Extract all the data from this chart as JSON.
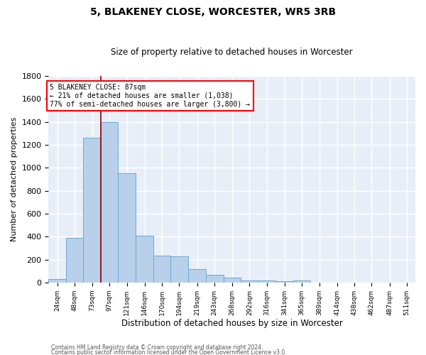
{
  "title": "5, BLAKENEY CLOSE, WORCESTER, WR5 3RB",
  "subtitle": "Size of property relative to detached houses in Worcester",
  "xlabel": "Distribution of detached houses by size in Worcester",
  "ylabel": "Number of detached properties",
  "footnote1": "Contains HM Land Registry data © Crown copyright and database right 2024.",
  "footnote2": "Contains public sector information licensed under the Open Government Licence v3.0.",
  "annotation_line1": "5 BLAKENEY CLOSE: 87sqm",
  "annotation_line2": "← 21% of detached houses are smaller (1,038)",
  "annotation_line3": "77% of semi-detached houses are larger (3,800) →",
  "bin_labels": [
    "24sqm",
    "48sqm",
    "73sqm",
    "97sqm",
    "121sqm",
    "146sqm",
    "170sqm",
    "194sqm",
    "219sqm",
    "243sqm",
    "268sqm",
    "292sqm",
    "316sqm",
    "341sqm",
    "365sqm",
    "389sqm",
    "414sqm",
    "438sqm",
    "462sqm",
    "487sqm",
    "511sqm"
  ],
  "bar_values": [
    30,
    390,
    1260,
    1400,
    950,
    410,
    235,
    230,
    115,
    70,
    45,
    15,
    15,
    10,
    15,
    0,
    0,
    0,
    0,
    0,
    0
  ],
  "bar_color": "#b8d0ea",
  "bar_edge_color": "#6aaad4",
  "background_color": "#e8eef8",
  "grid_color": "#ffffff",
  "ylim": [
    0,
    1800
  ],
  "yticks": [
    0,
    200,
    400,
    600,
    800,
    1000,
    1200,
    1400,
    1600,
    1800
  ],
  "n_bins": 21,
  "bin_width": 24.5
}
